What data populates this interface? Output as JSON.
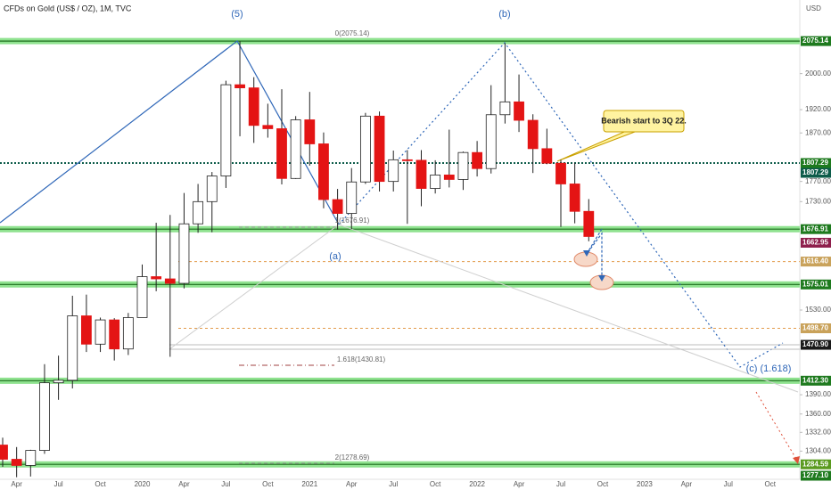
{
  "chart_data": {
    "type": "candlestick",
    "title": "CFDs on Gold (US$ / OZ), 1M, TVC",
    "currency": "USD",
    "log_scale": true,
    "categories": [
      null,
      "Apr",
      null,
      null,
      "Jul",
      null,
      null,
      "Oct",
      null,
      null,
      "2020",
      null,
      null,
      "Apr",
      null,
      null,
      "Jul",
      null,
      null,
      "Oct",
      null,
      null,
      "2021",
      null,
      null,
      "Apr",
      null,
      null,
      "Jul",
      null,
      null,
      "Oct",
      null,
      null,
      "2022",
      null,
      null,
      "Apr",
      null,
      null,
      "Jul",
      null,
      null,
      "Oct",
      null,
      null,
      "2023",
      null,
      null,
      "Apr",
      null,
      null,
      "Jul",
      null,
      null,
      "Oct",
      null,
      null
    ],
    "open": [
      1313,
      1292,
      1283,
      1305,
      1409,
      1413,
      1520,
      1472,
      1513,
      1464,
      1517,
      1589,
      1585,
      1577,
      1687,
      1730,
      1781,
      1975,
      1968,
      1886,
      1879,
      1776,
      1898,
      1847,
      1734,
      1707,
      1769,
      1906,
      1770,
      1814,
      1813,
      1756,
      1783,
      1774,
      1829,
      1796,
      1909,
      1937,
      1897,
      1837,
      1807,
      1765,
      1711,
      null,
      null,
      null,
      null,
      null,
      null,
      null,
      null,
      null,
      null,
      null,
      null,
      null,
      null,
      null
    ],
    "high": [
      1324,
      1310,
      1306,
      1439,
      1453,
      1555,
      1557,
      1517,
      1516,
      1525,
      1611,
      1689,
      1704,
      1747,
      1765,
      1789,
      1984,
      2075,
      1992,
      1933,
      1965,
      1906,
      1959,
      1871,
      1755,
      1797,
      1913,
      1916,
      1833,
      1834,
      1834,
      1813,
      1877,
      1831,
      1853,
      1974,
      2070,
      1998,
      1910,
      1879,
      1814,
      1808,
      1735,
      null,
      null,
      null,
      null,
      null,
      null,
      null,
      null,
      null,
      null,
      null,
      null,
      null,
      null,
      null
    ],
    "low": [
      1281,
      1266,
      1267,
      1300,
      1382,
      1400,
      1459,
      1459,
      1445,
      1454,
      1517,
      1563,
      1451,
      1568,
      1670,
      1671,
      1757,
      1863,
      1849,
      1860,
      1764,
      1775,
      1802,
      1717,
      1676,
      1677,
      1765,
      1750,
      1750,
      1687,
      1721,
      1746,
      1758,
      1753,
      1780,
      1786,
      1890,
      1872,
      1787,
      1805,
      1681,
      1688,
      1654,
      null,
      null,
      null,
      null,
      null,
      null,
      null,
      null,
      null,
      null,
      null,
      null,
      null,
      null,
      null
    ],
    "close": [
      1292,
      1283,
      1305,
      1409,
      1413,
      1520,
      1472,
      1513,
      1464,
      1517,
      1589,
      1585,
      1577,
      1687,
      1730,
      1781,
      1975,
      1968,
      1886,
      1879,
      1776,
      1898,
      1847,
      1734,
      1707,
      1769,
      1906,
      1770,
      1814,
      1813,
      1756,
      1783,
      1774,
      1829,
      1796,
      1909,
      1937,
      1897,
      1837,
      1807,
      1765,
      1711,
      1663,
      null,
      null,
      null,
      null,
      null,
      null,
      null,
      null,
      null,
      null,
      null,
      null,
      null,
      null,
      null
    ],
    "up_color": "#ffffff",
    "down_color": "#e41414",
    "ylim": [
      1263,
      2174
    ],
    "yticks": [
      {
        "value": 2000,
        "label": "2000.00"
      },
      {
        "value": 1920,
        "label": "1920.00"
      },
      {
        "value": 1870,
        "label": "1870.00"
      },
      {
        "value": 1770,
        "label": "1770.00"
      },
      {
        "value": 1730,
        "label": "1730.00"
      },
      {
        "value": 1530,
        "label": "1530.00"
      },
      {
        "value": 1390,
        "label": "1390.00"
      },
      {
        "value": 1360,
        "label": "1360.00"
      },
      {
        "value": 1332,
        "label": "1332.00"
      },
      {
        "value": 1304,
        "label": "1304.00"
      }
    ],
    "levels": [
      {
        "value": 2075.14,
        "label": "2075.14",
        "color": "#1e7a1e",
        "line": "band"
      },
      {
        "value": 1807.29,
        "label": "1807.29",
        "color": "#1e7a1e",
        "line": "dotted"
      },
      {
        "value": 1807.29,
        "label": "1807.29",
        "color": "#0d5c4a",
        "line": "none"
      },
      {
        "value": 1676.91,
        "label": "1676.91",
        "color": "#1e7a1e",
        "line": "band"
      },
      {
        "value": 1662.95,
        "label": "1662.95",
        "color": "#8e1f4c",
        "line": "none"
      },
      {
        "value": 1616.4,
        "label": "1616.40",
        "color": "#c9a25a",
        "line": "dashed"
      },
      {
        "value": 1575.01,
        "label": "1575.01",
        "color": "#1e7a1e",
        "line": "band"
      },
      {
        "value": 1498.7,
        "label": "1498.70",
        "color": "#c9a25a",
        "line": "dashed"
      },
      {
        "value": 1470.9,
        "label": "1470.90",
        "color": "#1a1a1a",
        "line": "solid"
      },
      {
        "value": 1412.3,
        "label": "1412.30",
        "color": "#1e7a1e",
        "line": "band"
      },
      {
        "value": 1284.59,
        "label": "1284.59",
        "color": "#5a9a1e",
        "line": "band"
      },
      {
        "value": 1277.1,
        "label": "1277.10",
        "color": "#1e7a1e",
        "line": "none"
      }
    ],
    "wave_labels": [
      "(5)",
      "(a)",
      "(b)",
      "(c) (1.618)"
    ],
    "fib_labels": [
      "0(2075.14)",
      "1(1676.91)",
      "1.618(1430.81)",
      "2(1278.69)"
    ],
    "callout": "Bearish start to 3Q 22."
  }
}
